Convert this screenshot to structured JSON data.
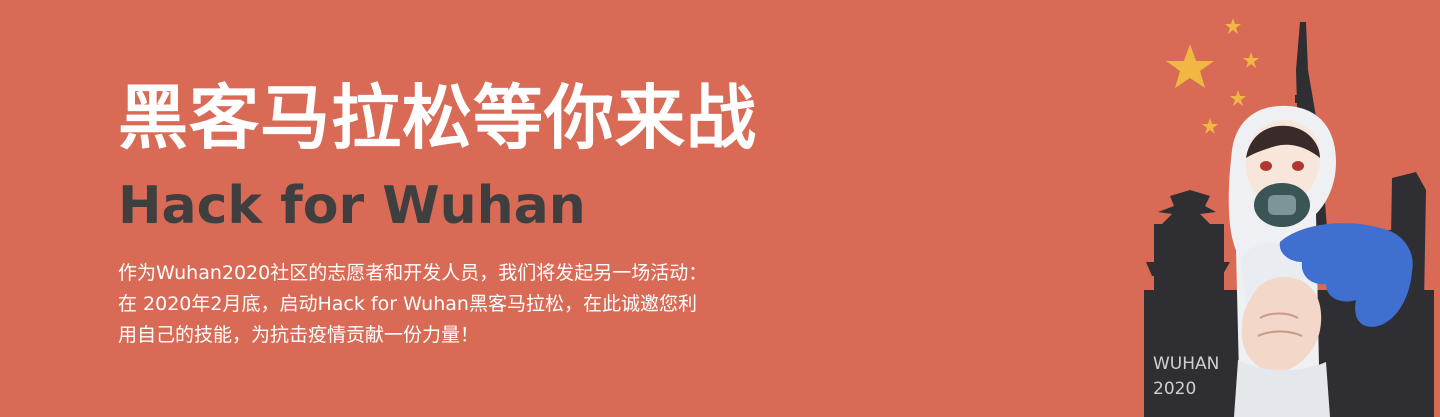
{
  "banner": {
    "headline": "黑客马拉松等你来战",
    "subheadline": "Hack for Wuhan",
    "description_lines": [
      "作为Wuhan2020社区的志愿者和开发人员，我们将发起另一场活动：",
      "在 2020年2月底，启动Hack for Wuhan黑客马拉松，在此诚邀您利",
      "用自己的技能，为抗击疫情贡献一份力量！"
    ],
    "illustration_label_lines": [
      "WUHAN",
      "2020"
    ],
    "colors": {
      "background": "#d96a55",
      "headline": "#ffffff",
      "subheadline": "#3f3f3f",
      "star": "#f0b843",
      "skyline": "#2f2f33"
    },
    "illustration_icons": [
      "star-icon",
      "city-skyline",
      "medic-in-protective-suit"
    ]
  }
}
